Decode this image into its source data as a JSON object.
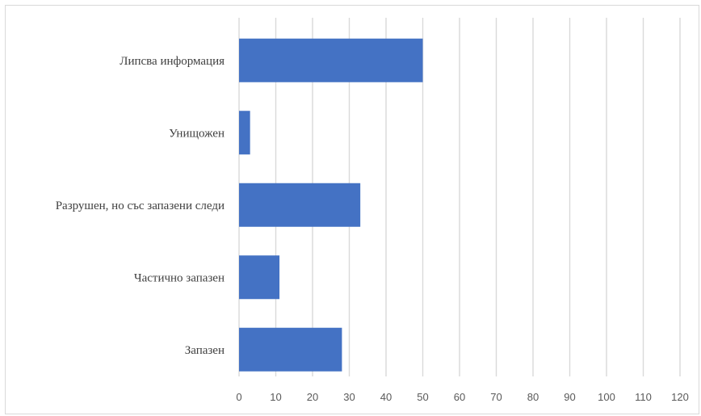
{
  "chart_data": {
    "type": "bar",
    "orientation": "horizontal",
    "title": "",
    "xlabel": "",
    "ylabel": "",
    "categories": [
      "Липсва информация",
      "Унищожен",
      "Разрушен, но със запазени следи",
      "Частично запазен",
      "Запазен"
    ],
    "values": [
      50,
      3,
      33,
      11,
      28
    ],
    "xlim": [
      0,
      120
    ],
    "xticks": [
      "0",
      "10",
      "20",
      "30",
      "40",
      "50",
      "60",
      "70",
      "80",
      "90",
      "100",
      "110",
      "120"
    ],
    "grid": true,
    "legend": "none",
    "bar_color": "#4472c4",
    "grid_color": "#d9d9d9"
  }
}
